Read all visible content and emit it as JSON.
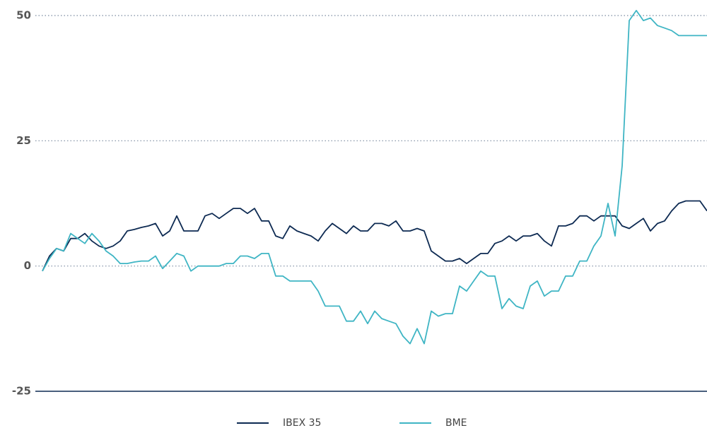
{
  "chart_data": {
    "type": "line",
    "series": [
      {
        "name": "IBEX 35",
        "color": "#0d2a52",
        "values": [
          -1,
          2,
          3.5,
          3,
          5.5,
          5.5,
          6.5,
          5,
          4,
          3.5,
          4,
          5,
          7,
          7.3,
          7.7,
          8,
          8.5,
          6,
          7,
          10,
          7,
          7,
          7,
          10,
          10.5,
          9.5,
          10.5,
          11.5,
          11.5,
          10.5,
          11.5,
          9,
          9,
          6,
          5.5,
          8,
          7,
          6.5,
          6,
          5,
          7,
          8.5,
          7.5,
          6.5,
          8,
          7,
          7,
          8.5,
          8.5,
          8,
          9,
          7,
          7,
          7.5,
          7,
          3,
          2,
          1,
          1,
          1.5,
          0.5,
          1.5,
          2.5,
          2.5,
          4.5,
          5,
          6,
          5,
          6,
          6,
          6.5,
          5,
          4,
          8,
          8,
          8.5,
          10,
          10,
          9,
          10,
          10,
          10,
          8,
          7.5,
          8.5,
          9.5,
          7,
          8.5,
          9,
          11,
          12.5,
          13,
          13,
          13,
          11
        ]
      },
      {
        "name": "BME",
        "color": "#3fb5c4",
        "values": [
          -1,
          1.5,
          3.5,
          3,
          6.5,
          5.5,
          4.5,
          6.5,
          5,
          3,
          2,
          0.5,
          0.5,
          0.8,
          1,
          1,
          2,
          -0.5,
          1,
          2.5,
          2,
          -1,
          0,
          0,
          0,
          0,
          0.5,
          0.5,
          2,
          2,
          1.5,
          2.5,
          2.5,
          -2,
          -2,
          -3,
          -3,
          -3,
          -3,
          -5,
          -8,
          -8,
          -8,
          -11,
          -11,
          -9,
          -11.5,
          -9,
          -10.5,
          -11,
          -11.5,
          -14,
          -15.5,
          -12.5,
          -15.5,
          -9,
          -10,
          -9.5,
          -9.5,
          -4,
          -5,
          -3,
          -1,
          -2,
          -2,
          -8.5,
          -6.5,
          -8,
          -8.5,
          -4,
          -3,
          -6,
          -5,
          -5,
          -2,
          -2,
          1,
          1,
          4,
          6,
          12.5,
          6,
          20,
          49,
          51,
          49,
          49.5,
          48,
          47.5,
          47,
          46,
          46,
          46,
          46,
          46
        ]
      }
    ],
    "ylim": [
      -25,
      50
    ],
    "yticks": [
      -25,
      0,
      25,
      50
    ],
    "grid": true
  }
}
